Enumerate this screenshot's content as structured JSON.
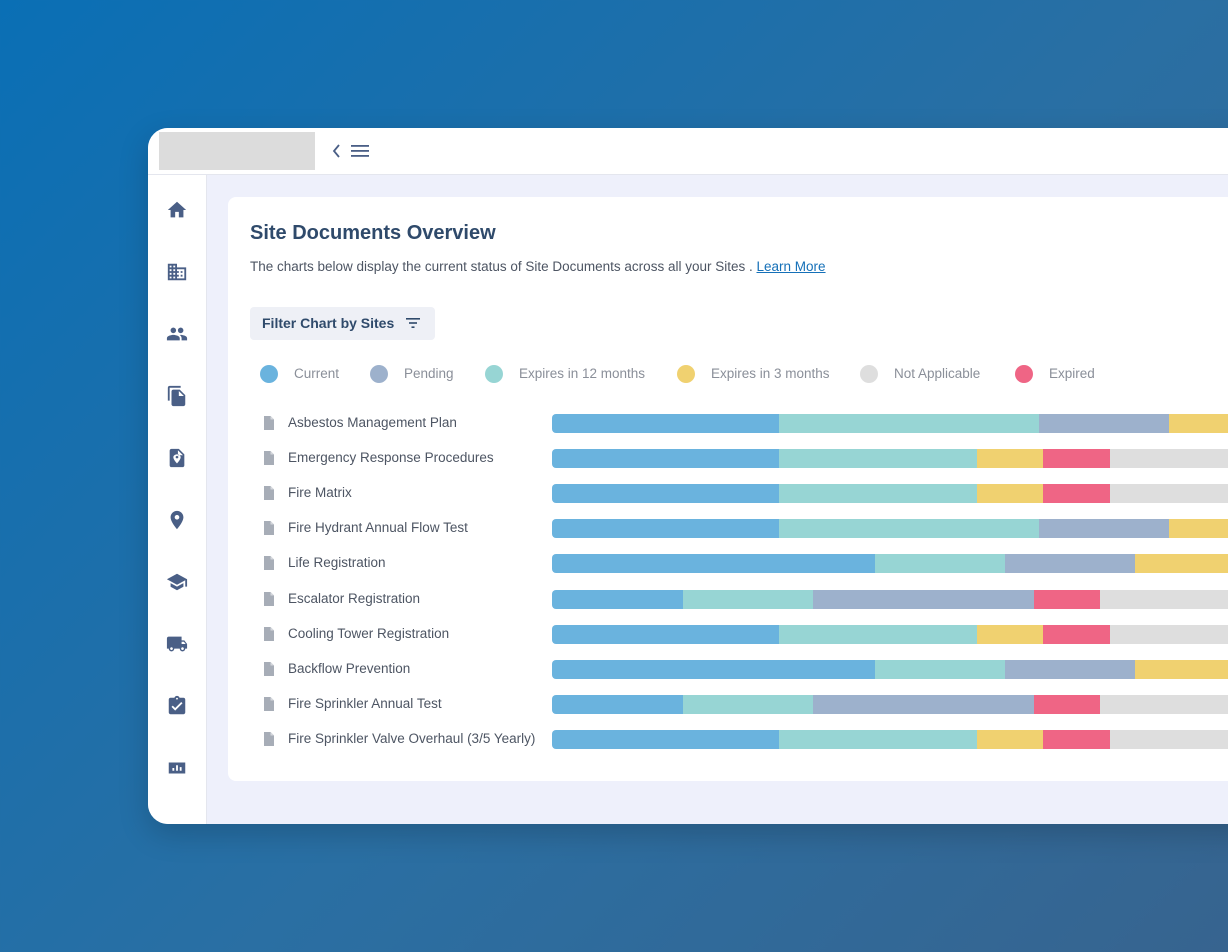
{
  "colors": {
    "current": "#6ab3de",
    "pending": "#9db1cc",
    "expires12": "#97d5d4",
    "expires3": "#f0d170",
    "notApplicable": "#dedede",
    "expired": "#ef6585"
  },
  "topbar": {
    "collapse_icon": "chevron-left-icon",
    "menu_icon": "hamburger-menu-icon"
  },
  "sidebar": {
    "items": [
      {
        "name": "home",
        "icon": "home-icon"
      },
      {
        "name": "buildings",
        "icon": "building-icon"
      },
      {
        "name": "people",
        "icon": "people-icon"
      },
      {
        "name": "documents",
        "icon": "documents-icon"
      },
      {
        "name": "site-documents",
        "icon": "location-document-icon"
      },
      {
        "name": "locations",
        "icon": "map-pin-icon"
      },
      {
        "name": "training",
        "icon": "graduation-cap-icon"
      },
      {
        "name": "deliveries",
        "icon": "truck-icon"
      },
      {
        "name": "tasks",
        "icon": "clipboard-check-icon"
      },
      {
        "name": "reports",
        "icon": "chart-icon"
      }
    ]
  },
  "card": {
    "title": "Site Documents Overview",
    "subtitle": "The charts below display the current status of Site Documents across all your Sites .",
    "learn_more": "Learn More",
    "filter_label": "Filter Chart by Sites"
  },
  "legend": [
    {
      "key": "current",
      "label": "Current"
    },
    {
      "key": "pending",
      "label": "Pending"
    },
    {
      "key": "expires12",
      "label": "Expires in 12 months"
    },
    {
      "key": "expires3",
      "label": "Expires in 3 months"
    },
    {
      "key": "notApplicable",
      "label": "Not Applicable"
    },
    {
      "key": "expired",
      "label": "Expired"
    }
  ],
  "chart_data": {
    "type": "bar",
    "orientation": "horizontal",
    "stacked": true,
    "categories": [
      "Asbestos Management Plan",
      "Emergency Response Procedures",
      "Fire Matrix",
      "Fire Hydrant Annual Flow Test",
      "Life Registration",
      "Escalator Registration",
      "Cooling Tower Registration",
      "Backflow Prevention",
      "Fire Sprinkler Annual Test",
      "Fire Sprinkler Valve Overhaul (3/5 Yearly)"
    ],
    "rows": [
      [
        {
          "key": "current",
          "value": 227
        },
        {
          "key": "expires12",
          "value": 260
        },
        {
          "key": "pending",
          "value": 130
        },
        {
          "key": "expires3",
          "value": 60
        }
      ],
      [
        {
          "key": "current",
          "value": 227
        },
        {
          "key": "expires12",
          "value": 198
        },
        {
          "key": "expires3",
          "value": 66
        },
        {
          "key": "expired",
          "value": 67
        },
        {
          "key": "notApplicable",
          "value": 120
        }
      ],
      [
        {
          "key": "current",
          "value": 227
        },
        {
          "key": "expires12",
          "value": 198
        },
        {
          "key": "expires3",
          "value": 66
        },
        {
          "key": "expired",
          "value": 67
        },
        {
          "key": "notApplicable",
          "value": 120
        }
      ],
      [
        {
          "key": "current",
          "value": 227
        },
        {
          "key": "expires12",
          "value": 260
        },
        {
          "key": "pending",
          "value": 130
        },
        {
          "key": "expires3",
          "value": 60
        }
      ],
      [
        {
          "key": "current",
          "value": 323
        },
        {
          "key": "expires12",
          "value": 130
        },
        {
          "key": "pending",
          "value": 130
        },
        {
          "key": "expires3",
          "value": 94
        }
      ],
      [
        {
          "key": "current",
          "value": 131
        },
        {
          "key": "expires12",
          "value": 130
        },
        {
          "key": "pending",
          "value": 221
        },
        {
          "key": "expired",
          "value": 66
        },
        {
          "key": "notApplicable",
          "value": 130
        }
      ],
      [
        {
          "key": "current",
          "value": 227
        },
        {
          "key": "expires12",
          "value": 198
        },
        {
          "key": "expires3",
          "value": 66
        },
        {
          "key": "expired",
          "value": 67
        },
        {
          "key": "notApplicable",
          "value": 120
        }
      ],
      [
        {
          "key": "current",
          "value": 323
        },
        {
          "key": "expires12",
          "value": 130
        },
        {
          "key": "pending",
          "value": 130
        },
        {
          "key": "expires3",
          "value": 94
        }
      ],
      [
        {
          "key": "current",
          "value": 131
        },
        {
          "key": "expires12",
          "value": 130
        },
        {
          "key": "pending",
          "value": 221
        },
        {
          "key": "expired",
          "value": 66
        },
        {
          "key": "notApplicable",
          "value": 130
        }
      ],
      [
        {
          "key": "current",
          "value": 227
        },
        {
          "key": "expires12",
          "value": 198
        },
        {
          "key": "expires3",
          "value": 66
        },
        {
          "key": "expired",
          "value": 67
        },
        {
          "key": "notApplicable",
          "value": 120
        }
      ]
    ]
  }
}
